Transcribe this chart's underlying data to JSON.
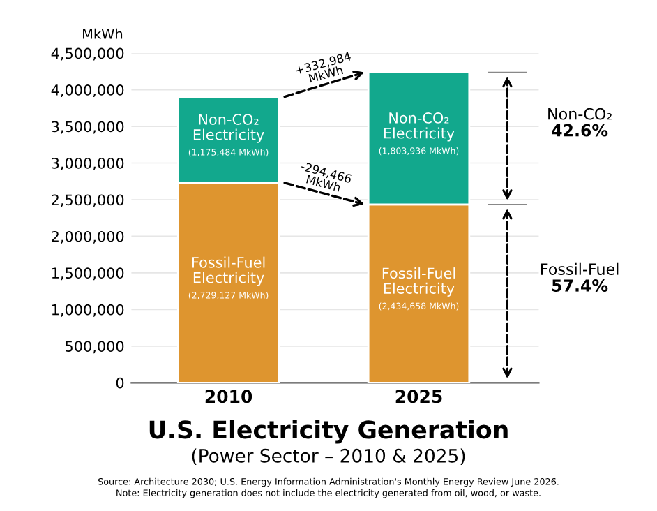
{
  "chart_data": {
    "type": "bar",
    "stacked": true,
    "title": "U.S. Electricity Generation",
    "subtitle": "(Power Sector – 2010 & 2025)",
    "ylabel": "MkWh",
    "categories": [
      "2010",
      "2025"
    ],
    "series": [
      {
        "name": "Fossil-Fuel\nElectricity",
        "color": "#de952f",
        "values": [
          2729127,
          2434658
        ],
        "value_labels": [
          "(2,729,127 MkWh)",
          "(2,434,658 MkWh)"
        ]
      },
      {
        "name": "Non-CO₂\nElectricity",
        "color": "#12a88d",
        "values": [
          1175484,
          1803936
        ],
        "value_labels": [
          "(1,175,484 MkWh)",
          "(1,803,936 MkWh)"
        ]
      }
    ],
    "ylim": [
      0,
      4500000
    ],
    "yticks": [
      {
        "value": 0,
        "label": "0"
      },
      {
        "value": 500000,
        "label": "500,000"
      },
      {
        "value": 1000000,
        "label": "1,000,000"
      },
      {
        "value": 1500000,
        "label": "1,500,000"
      },
      {
        "value": 2000000,
        "label": "2,000,000"
      },
      {
        "value": 2500000,
        "label": "2,500,000"
      },
      {
        "value": 3000000,
        "label": "3,000,000"
      },
      {
        "value": 3500000,
        "label": "3,500,000"
      },
      {
        "value": 4000000,
        "label": "4,000,000"
      },
      {
        "value": 4500000,
        "label": "4,500,000"
      }
    ],
    "grid": "y",
    "legend": false,
    "annotations": [
      "+332,984\nMkWh",
      "-294,466\nMkWh",
      "Non-CO₂\n42.6%",
      "Fossil-Fuel\n57.4%",
      "Source: Architecture 2030; U.S. Energy Information Administration's Monthly Energy Review June 2026.\nNote: Electricity generation does not include the electricity generated from oil, wood, or waste."
    ]
  }
}
